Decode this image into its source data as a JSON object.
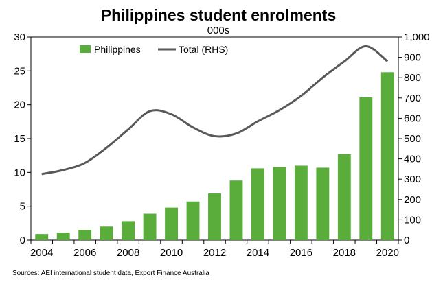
{
  "chart_data": {
    "type": "bar",
    "title": "Philippines student enrolments",
    "subtitle": "000s",
    "source": "Sources: AEI international student data, Export Finance Australia",
    "categories": [
      "2004",
      "2005",
      "2006",
      "2007",
      "2008",
      "2009",
      "2010",
      "2011",
      "2012",
      "2013",
      "2014",
      "2015",
      "2016",
      "2017",
      "2018",
      "2019",
      "2020"
    ],
    "x_tick_labels": [
      "2004",
      "2006",
      "2008",
      "2010",
      "2012",
      "2014",
      "2016",
      "2018",
      "2020"
    ],
    "series": [
      {
        "name": "Philippines",
        "type": "bar",
        "axis": "left",
        "color": "#5aad3a",
        "values": [
          0.9,
          1.1,
          1.5,
          2.0,
          2.8,
          3.9,
          4.8,
          5.7,
          6.9,
          8.8,
          10.6,
          10.8,
          11.0,
          10.7,
          12.7,
          21.1,
          24.8
        ]
      },
      {
        "name": "Total (RHS)",
        "type": "line",
        "axis": "right",
        "color": "#595959",
        "values": [
          325,
          345,
          380,
          455,
          545,
          635,
          620,
          555,
          512,
          525,
          585,
          640,
          710,
          800,
          880,
          955,
          880
        ]
      }
    ],
    "y_left": {
      "min": 0,
      "max": 30,
      "ticks": [
        0,
        5,
        10,
        15,
        20,
        25,
        30
      ],
      "tick_labels": [
        "0",
        "5",
        "10",
        "15",
        "20",
        "25",
        "30"
      ]
    },
    "y_right": {
      "min": 0,
      "max": 1000,
      "ticks": [
        0,
        100,
        200,
        300,
        400,
        500,
        600,
        700,
        800,
        900,
        1000
      ],
      "tick_labels": [
        "0",
        "100",
        "200",
        "300",
        "400",
        "500",
        "600",
        "700",
        "800",
        "900",
        "1,000"
      ]
    },
    "grid": false,
    "legend": "top-left",
    "xlabel": "",
    "ylabel": ""
  }
}
